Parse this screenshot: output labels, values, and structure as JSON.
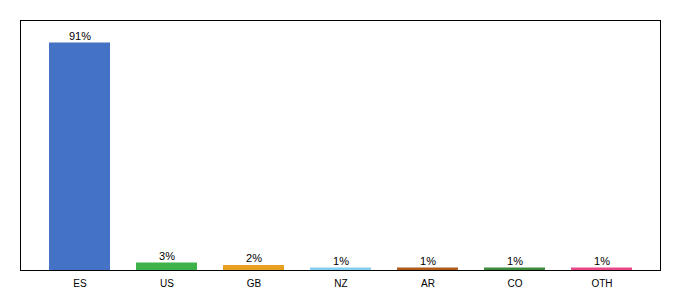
{
  "chart_data": {
    "type": "bar",
    "categories": [
      "ES",
      "US",
      "GB",
      "NZ",
      "AR",
      "CO",
      "OTH"
    ],
    "values": [
      91,
      3,
      2,
      1,
      1,
      1,
      1
    ],
    "colors": [
      "#4472c4",
      "#3db34a",
      "#e8a020",
      "#82cef0",
      "#b05a1a",
      "#3a8a3a",
      "#e84888"
    ],
    "data_labels": true,
    "value_labels": [
      "91%",
      "3%",
      "2%",
      "1%",
      "1%",
      "1%",
      "1%"
    ],
    "ylim": [
      0,
      100
    ],
    "tick_labels": "x",
    "grid": false
  }
}
